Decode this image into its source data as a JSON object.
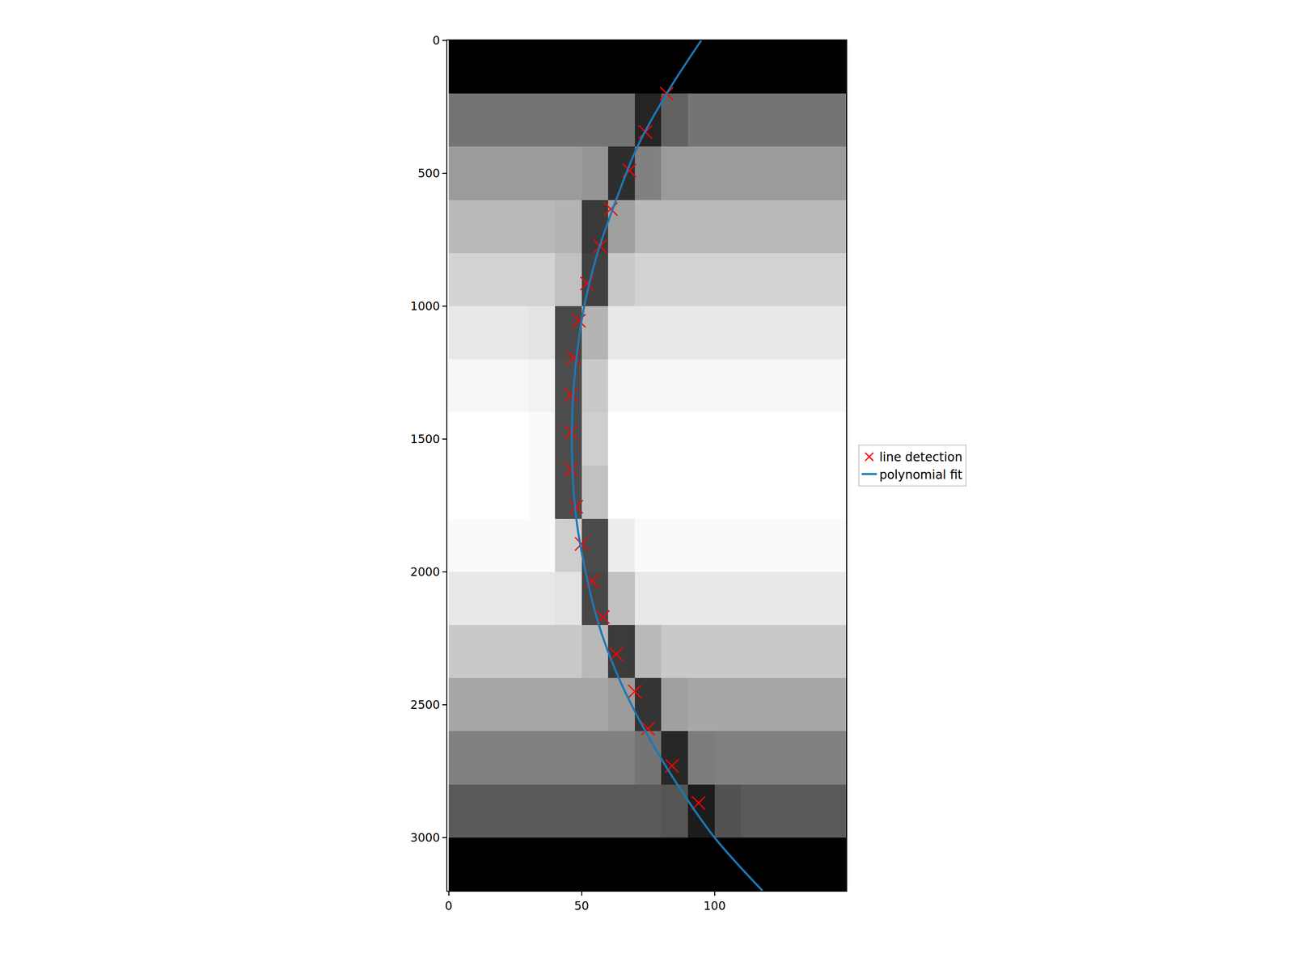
{
  "chart_data": {
    "type": "scatter",
    "xlim": [
      -0.5,
      149.5
    ],
    "ylim": [
      3200,
      0
    ],
    "xticks": [
      0,
      50,
      100
    ],
    "yticks": [
      0,
      500,
      1000,
      1500,
      2000,
      2500,
      3000
    ],
    "grid": false,
    "legend": "right",
    "image": {
      "x": [
        5,
        15,
        25,
        35,
        45,
        55,
        65,
        75,
        85,
        95,
        105,
        115,
        125,
        135,
        145
      ],
      "y": [
        100,
        300,
        500,
        700,
        900,
        1100,
        1300,
        1500,
        1700,
        1900,
        2100,
        2300,
        2500,
        2700,
        2900,
        3100
      ],
      "cells": [
        [
          0,
          0,
          0,
          0,
          0,
          0,
          0,
          0,
          0,
          0,
          0,
          0,
          0,
          0,
          0
        ],
        [
          45,
          45,
          45,
          45,
          45,
          45,
          45,
          14,
          38,
          45,
          45,
          45,
          45,
          45,
          45
        ],
        [
          60,
          60,
          60,
          60,
          60,
          58,
          18,
          50,
          60,
          60,
          60,
          60,
          60,
          60,
          60
        ],
        [
          72,
          72,
          72,
          72,
          70,
          22,
          62,
          72,
          72,
          72,
          72,
          72,
          72,
          72,
          72
        ],
        [
          82,
          82,
          82,
          82,
          75,
          25,
          78,
          82,
          82,
          82,
          82,
          82,
          82,
          82,
          82
        ],
        [
          90,
          90,
          90,
          88,
          28,
          70,
          90,
          90,
          90,
          90,
          90,
          90,
          90,
          90,
          90
        ],
        [
          96,
          96,
          96,
          94,
          30,
          78,
          96,
          96,
          96,
          96,
          96,
          96,
          96,
          96,
          96
        ],
        [
          99,
          99,
          99,
          97,
          30,
          80,
          99,
          99,
          99,
          99,
          99,
          99,
          99,
          99,
          99
        ],
        [
          99,
          99,
          99,
          97,
          30,
          75,
          99,
          99,
          99,
          99,
          99,
          99,
          99,
          99,
          99
        ],
        [
          97,
          97,
          97,
          97,
          80,
          29,
          92,
          97,
          97,
          97,
          97,
          97,
          97,
          97,
          97
        ],
        [
          90,
          90,
          90,
          90,
          88,
          27,
          75,
          90,
          90,
          90,
          90,
          90,
          90,
          90,
          90
        ],
        [
          78,
          78,
          78,
          78,
          78,
          72,
          23,
          72,
          78,
          78,
          78,
          78,
          78,
          78,
          78
        ],
        [
          65,
          65,
          65,
          65,
          65,
          65,
          60,
          20,
          62,
          65,
          65,
          65,
          65,
          65,
          65
        ],
        [
          50,
          50,
          50,
          50,
          50,
          50,
          50,
          45,
          15,
          48,
          50,
          50,
          50,
          50,
          50
        ],
        [
          35,
          35,
          35,
          35,
          35,
          35,
          35,
          35,
          33,
          11,
          32,
          35,
          35,
          35,
          35
        ],
        [
          0,
          0,
          0,
          0,
          0,
          0,
          0,
          0,
          0,
          0,
          0,
          0,
          0,
          0,
          0
        ]
      ]
    },
    "series": [
      {
        "name": "line detection",
        "type": "scatter",
        "marker": "x",
        "color": "#ff0000",
        "x": [
          82,
          74,
          68,
          61,
          57,
          52,
          49,
          47,
          46,
          46,
          46,
          48,
          50,
          54,
          58,
          63,
          70,
          75,
          84,
          94
        ],
        "y": [
          200,
          345,
          490,
          635,
          775,
          915,
          1055,
          1195,
          1335,
          1475,
          1615,
          1755,
          1895,
          2035,
          2170,
          2310,
          2450,
          2590,
          2730,
          2870
        ]
      },
      {
        "name": "polynomial fit",
        "type": "line",
        "line_style": "solid",
        "color": "#1f77b4",
        "x": [
          95,
          82,
          71,
          63,
          56,
          51,
          48,
          46.5,
          46.5,
          48,
          51.5,
          56.5,
          64,
          74,
          86,
          100,
          118
        ],
        "y": [
          0,
          200,
          400,
          600,
          800,
          1000,
          1200,
          1400,
          1600,
          1800,
          2000,
          2200,
          2400,
          2600,
          2800,
          3000,
          3200
        ]
      }
    ]
  }
}
